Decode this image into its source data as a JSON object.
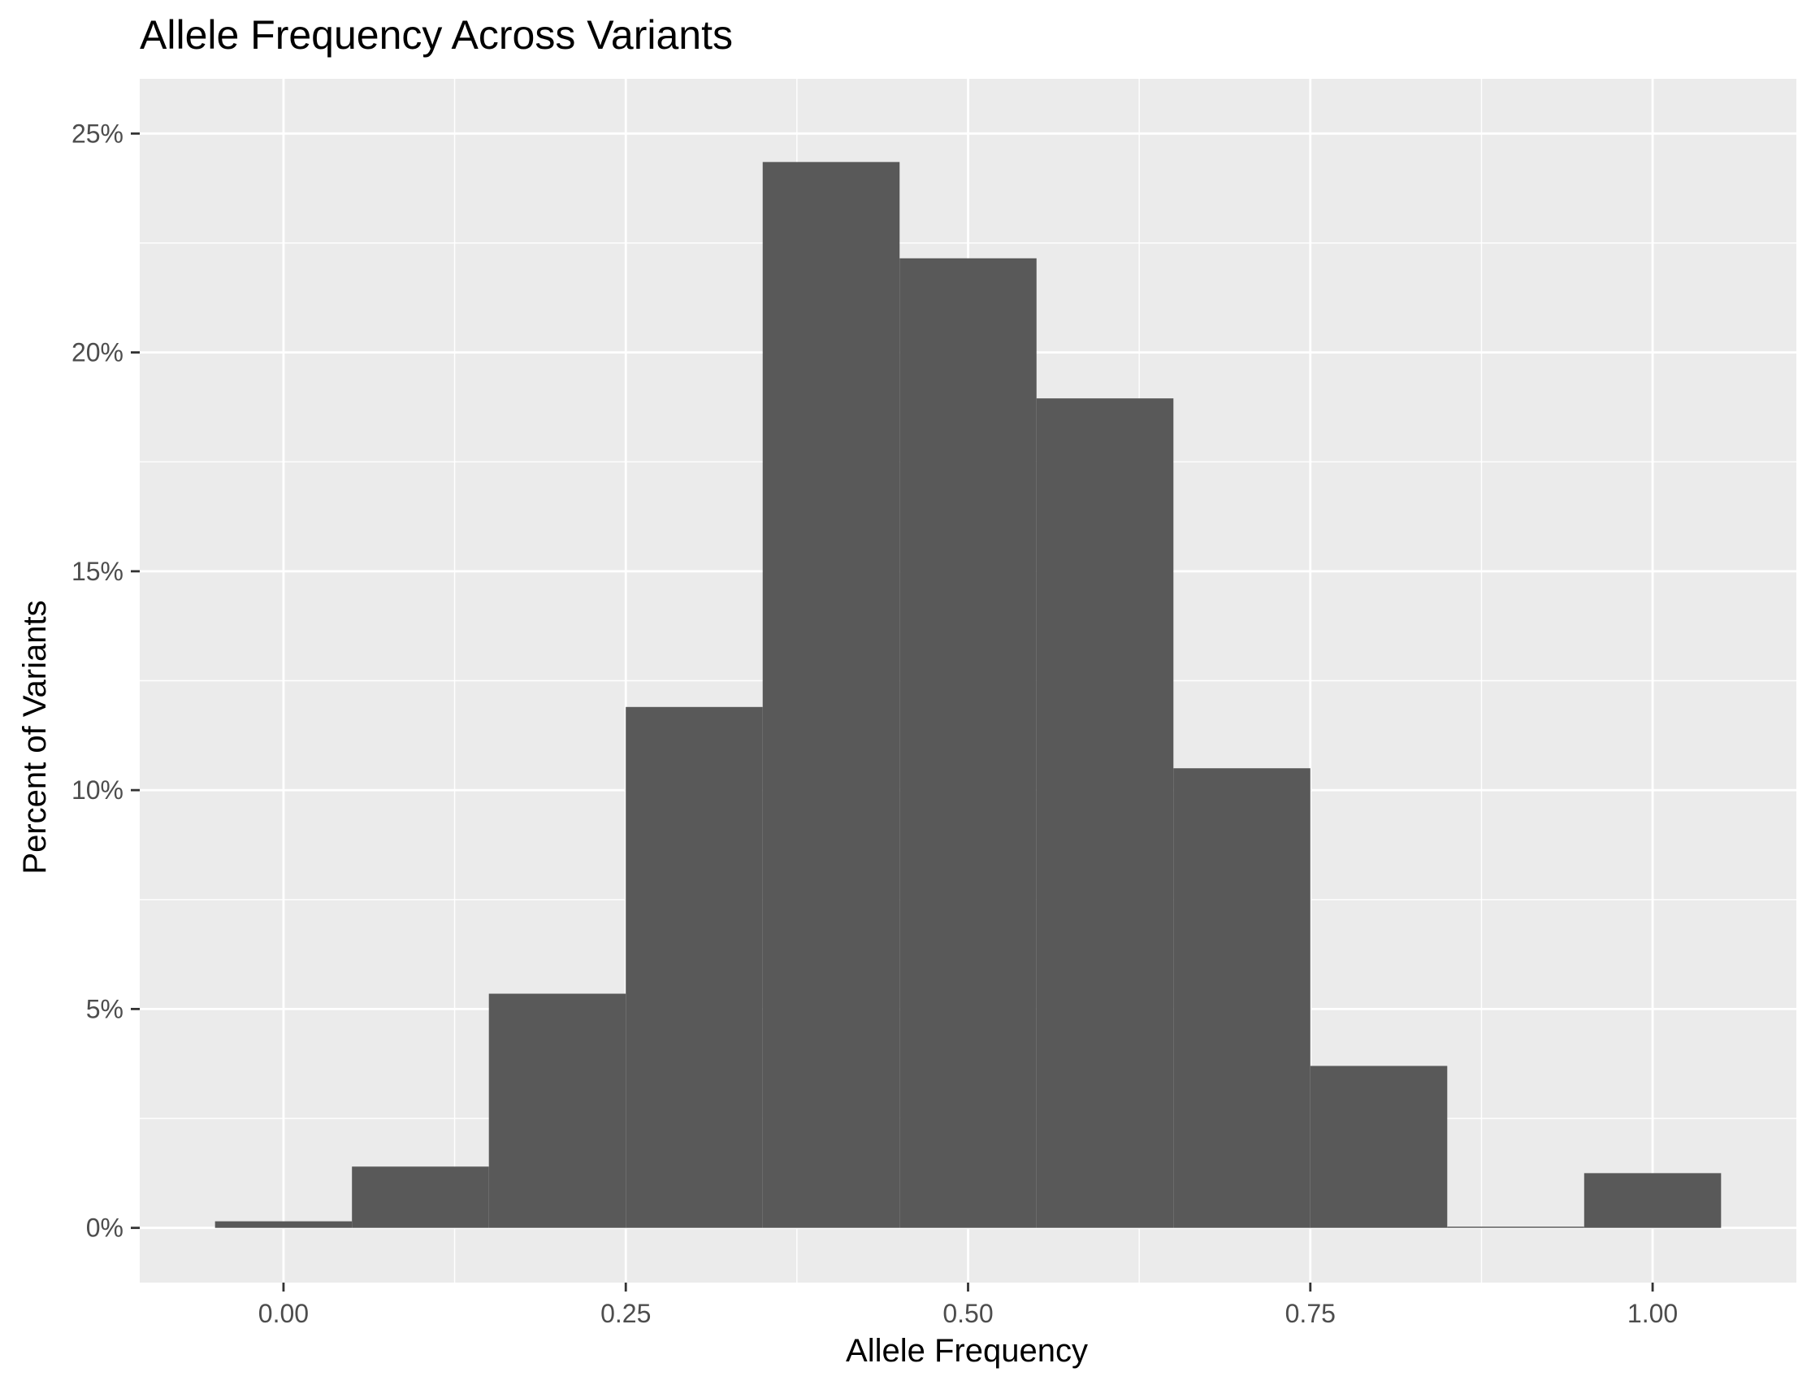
{
  "chart_data": {
    "type": "bar",
    "title": "Allele Frequency Across Variants",
    "xlabel": "Allele Frequency",
    "ylabel": "Percent of Variants",
    "x_ticks": [
      0.0,
      0.25,
      0.5,
      0.75,
      1.0
    ],
    "x_tick_labels": [
      "0.00",
      "0.25",
      "0.50",
      "0.75",
      "1.00"
    ],
    "y_ticks": [
      0,
      5,
      10,
      15,
      20,
      25
    ],
    "y_tick_labels": [
      "0%",
      "5%",
      "10%",
      "15%",
      "20%",
      "25%"
    ],
    "xlim": [
      -0.105,
      1.105
    ],
    "ylim": [
      -1.25,
      26.25
    ],
    "bin_width": 0.1,
    "bins": [
      {
        "x0": -0.05,
        "x1": 0.05,
        "value": 0.15
      },
      {
        "x0": 0.05,
        "x1": 0.15,
        "value": 1.4
      },
      {
        "x0": 0.15,
        "x1": 0.25,
        "value": 5.35
      },
      {
        "x0": 0.25,
        "x1": 0.35,
        "value": 11.9
      },
      {
        "x0": 0.35,
        "x1": 0.45,
        "value": 24.35
      },
      {
        "x0": 0.45,
        "x1": 0.55,
        "value": 22.15
      },
      {
        "x0": 0.55,
        "x1": 0.65,
        "value": 18.95
      },
      {
        "x0": 0.65,
        "x1": 0.75,
        "value": 10.5
      },
      {
        "x0": 0.75,
        "x1": 0.85,
        "value": 3.7
      },
      {
        "x0": 0.85,
        "x1": 0.95,
        "value": 0.0
      },
      {
        "x0": 0.95,
        "x1": 1.05,
        "value": 1.25
      }
    ],
    "grid": true,
    "legend": "none",
    "colors": {
      "bar": "#595959",
      "panel": "#ebebeb",
      "grid": "#ffffff",
      "tick_text": "#4d4d4d",
      "tick_mark": "#333333"
    }
  }
}
